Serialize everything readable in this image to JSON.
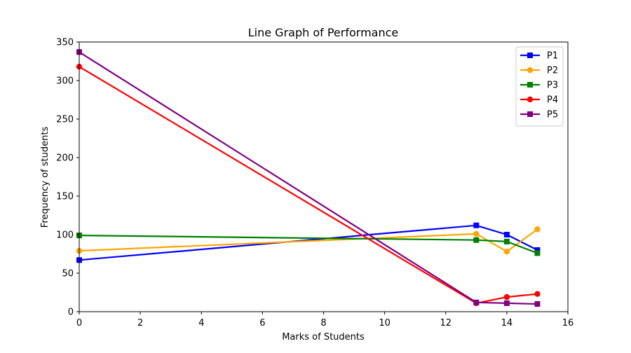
{
  "chart_data": {
    "type": "line",
    "title": "Line Graph of Performance",
    "xlabel": "Marks of Students",
    "ylabel": "Frequency of students",
    "xlim": [
      0,
      16
    ],
    "ylim": [
      0,
      350
    ],
    "x_ticks": [
      0,
      2,
      4,
      6,
      8,
      10,
      12,
      14,
      16
    ],
    "y_ticks": [
      0,
      50,
      100,
      150,
      200,
      250,
      300,
      350
    ],
    "x": [
      0,
      13,
      14,
      15
    ],
    "grid": false,
    "legend_position": "top-right",
    "series": [
      {
        "name": "P1",
        "color": "#0000ff",
        "marker": "square",
        "values": [
          67,
          112,
          100,
          80
        ]
      },
      {
        "name": "P2",
        "color": "#ffa500",
        "marker": "circle",
        "values": [
          79,
          101,
          78,
          107
        ]
      },
      {
        "name": "P3",
        "color": "#008000",
        "marker": "square",
        "values": [
          99,
          93,
          91,
          76
        ]
      },
      {
        "name": "P4",
        "color": "#ff0000",
        "marker": "circle",
        "values": [
          318,
          11,
          19,
          23
        ]
      },
      {
        "name": "P5",
        "color": "#800080",
        "marker": "square",
        "values": [
          337,
          12,
          11,
          10
        ]
      }
    ]
  }
}
